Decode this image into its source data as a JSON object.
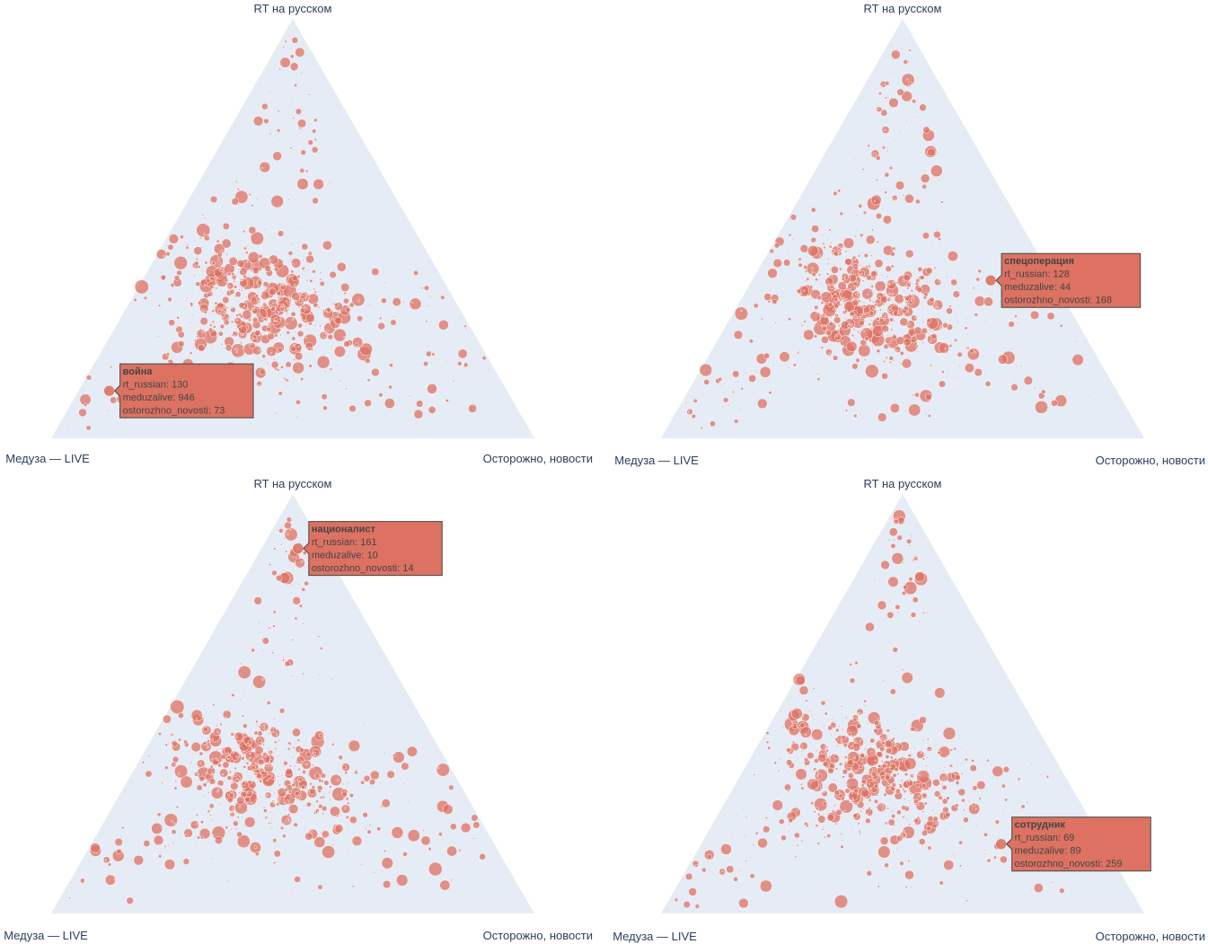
{
  "chart_data": [
    {
      "type": "scatter",
      "variant": "ternary",
      "axes": {
        "a": "RT на русском",
        "b": "Медуза — LIVE",
        "c": "Осторожно, новости"
      },
      "marker_color": "#dd7262",
      "background_color": "#e5ecf6",
      "hover": {
        "word": "война",
        "rt_russian": 130,
        "meduzalive": 946,
        "ostorozhno_novosti": 73,
        "lines": [
          "rt_russian: 130",
          "meduzalive: 946",
          "ostorozhno_novosti: 73"
        ]
      }
    },
    {
      "type": "scatter",
      "variant": "ternary",
      "axes": {
        "a": "RT на русском",
        "b": "Медуза — LIVE",
        "c": "Осторожно, новости"
      },
      "marker_color": "#dd7262",
      "background_color": "#e5ecf6",
      "hover": {
        "word": "спецоперация",
        "rt_russian": 128,
        "meduzalive": 44,
        "ostorozhno_novosti": 168,
        "lines": [
          "rt_russian: 128",
          "meduzalive: 44",
          "ostorozhno_novosti: 168"
        ]
      }
    },
    {
      "type": "scatter",
      "variant": "ternary",
      "axes": {
        "a": "RT на русском",
        "b": "Медуза — LIVE",
        "c": "Осторожно, новости"
      },
      "marker_color": "#dd7262",
      "background_color": "#e5ecf6",
      "hover": {
        "word": "националист",
        "rt_russian": 161,
        "meduzalive": 10,
        "ostorozhno_novosti": 14,
        "lines": [
          "rt_russian: 161",
          "meduzalive: 10",
          "ostorozhno_novosti: 14"
        ]
      }
    },
    {
      "type": "scatter",
      "variant": "ternary",
      "axes": {
        "a": "RT на русском",
        "b": "Медуза — LIVE",
        "c": "Осторожно, новости"
      },
      "marker_color": "#dd7262",
      "background_color": "#e5ecf6",
      "hover": {
        "word": "сотрудник",
        "rt_russian": 69,
        "meduzalive": 89,
        "ostorozhno_novosti": 259,
        "lines": [
          "rt_russian: 69",
          "meduzalive: 89",
          "ostorozhno_novosti: 259"
        ]
      }
    }
  ]
}
